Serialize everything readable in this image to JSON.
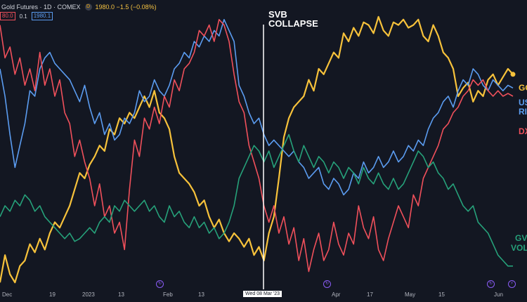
{
  "header": {
    "title": "Gold Futures · 1D · COMEX",
    "badge": "D",
    "gold_value": "1980.0  −1.5 (−0.08%)",
    "box_red": "80.0",
    "mid_value": "0.1",
    "box_blue": "1980.1"
  },
  "annotation": {
    "line1": "SVB",
    "line2": "COLLAPSE"
  },
  "cursor_label": "Wed 08 Mar '23",
  "series_labels": {
    "gold": "GO",
    "us_real_1": "US",
    "us_real_2": "RI",
    "dxy": "DX",
    "gvz_1": "GV",
    "gvz_2": "VOL"
  },
  "colors": {
    "background": "#131722",
    "gold": "#f7c23b",
    "blue": "#5b9cf0",
    "red": "#f0505b",
    "green": "#26a17a",
    "event": "#8a5cf6"
  },
  "chart_data": {
    "type": "line",
    "x_tick_labels": [
      "Dec",
      "19",
      "2023",
      "13",
      "Feb",
      "13",
      "Apr",
      "17",
      "May",
      "15",
      "Jun"
    ],
    "annotation_date": "Wed 08 Mar '23",
    "series": [
      {
        "name": "GO",
        "color": "#f7c23b",
        "values": [
          0.02,
          0.12,
          0.05,
          0.02,
          0.08,
          0.1,
          0.16,
          0.13,
          0.18,
          0.14,
          0.2,
          0.24,
          0.22,
          0.26,
          0.3,
          0.36,
          0.42,
          0.4,
          0.45,
          0.48,
          0.52,
          0.5,
          0.58,
          0.56,
          0.62,
          0.6,
          0.64,
          0.62,
          0.66,
          0.7,
          0.66,
          0.72,
          0.64,
          0.62,
          0.58,
          0.48,
          0.42,
          0.4,
          0.38,
          0.35,
          0.3,
          0.32,
          0.26,
          0.22,
          0.25,
          0.2,
          0.17,
          0.2,
          0.18,
          0.15,
          0.18,
          0.12,
          0.15,
          0.1,
          0.2,
          0.26,
          0.4,
          0.55,
          0.62,
          0.66,
          0.68,
          0.7,
          0.76,
          0.72,
          0.8,
          0.78,
          0.82,
          0.86,
          0.84,
          0.93,
          0.9,
          0.95,
          0.92,
          0.97,
          0.96,
          0.93,
          0.99,
          0.94,
          0.92,
          0.97,
          0.96,
          0.98,
          0.95,
          0.96,
          0.98,
          0.92,
          0.9,
          0.96,
          0.92,
          0.86,
          0.84,
          0.8,
          0.7,
          0.73,
          0.75,
          0.68,
          0.72,
          0.7,
          0.76,
          0.78,
          0.74,
          0.77,
          0.8,
          0.78
        ]
      },
      {
        "name": "US RI",
        "color": "#5b9cf0",
        "values": [
          0.8,
          0.7,
          0.56,
          0.44,
          0.52,
          0.6,
          0.72,
          0.7,
          0.8,
          0.84,
          0.86,
          0.82,
          0.8,
          0.78,
          0.76,
          0.72,
          0.68,
          0.74,
          0.66,
          0.6,
          0.64,
          0.56,
          0.6,
          0.54,
          0.56,
          0.62,
          0.6,
          0.64,
          0.72,
          0.68,
          0.7,
          0.76,
          0.72,
          0.7,
          0.74,
          0.8,
          0.82,
          0.86,
          0.84,
          0.9,
          0.88,
          0.92,
          0.9,
          0.94,
          0.92,
          0.98,
          0.94,
          0.9,
          0.74,
          0.7,
          0.64,
          0.6,
          0.62,
          0.56,
          0.52,
          0.54,
          0.52,
          0.5,
          0.48,
          0.5,
          0.46,
          0.44,
          0.4,
          0.42,
          0.44,
          0.38,
          0.36,
          0.4,
          0.38,
          0.34,
          0.36,
          0.42,
          0.4,
          0.46,
          0.42,
          0.44,
          0.48,
          0.44,
          0.46,
          0.5,
          0.46,
          0.48,
          0.52,
          0.5,
          0.54,
          0.52,
          0.58,
          0.62,
          0.64,
          0.68,
          0.7,
          0.66,
          0.72,
          0.76,
          0.74,
          0.8,
          0.78,
          0.74,
          0.72,
          0.76,
          0.74,
          0.72,
          0.74,
          0.73
        ]
      },
      {
        "name": "DX",
        "color": "#f0505b",
        "values": [
          0.96,
          0.84,
          0.88,
          0.78,
          0.84,
          0.74,
          0.8,
          0.72,
          0.86,
          0.74,
          0.8,
          0.7,
          0.76,
          0.64,
          0.6,
          0.48,
          0.54,
          0.46,
          0.4,
          0.3,
          0.38,
          0.26,
          0.3,
          0.2,
          0.24,
          0.14,
          0.36,
          0.54,
          0.48,
          0.62,
          0.58,
          0.66,
          0.6,
          0.7,
          0.66,
          0.76,
          0.72,
          0.8,
          0.82,
          0.86,
          0.94,
          0.92,
          0.96,
          0.9,
          0.98,
          0.96,
          0.9,
          0.78,
          0.68,
          0.64,
          0.52,
          0.46,
          0.4,
          0.3,
          0.24,
          0.3,
          0.2,
          0.26,
          0.16,
          0.22,
          0.1,
          0.18,
          0.06,
          0.14,
          0.2,
          0.1,
          0.14,
          0.24,
          0.16,
          0.12,
          0.2,
          0.16,
          0.3,
          0.22,
          0.18,
          0.26,
          0.14,
          0.1,
          0.18,
          0.24,
          0.3,
          0.26,
          0.22,
          0.34,
          0.3,
          0.4,
          0.44,
          0.48,
          0.52,
          0.58,
          0.6,
          0.64,
          0.66,
          0.7,
          0.72,
          0.76,
          0.74,
          0.76,
          0.72,
          0.7,
          0.72,
          0.7,
          0.71,
          0.7
        ]
      },
      {
        "name": "GV VOL",
        "color": "#26a17a",
        "values": [
          0.26,
          0.3,
          0.28,
          0.32,
          0.3,
          0.34,
          0.32,
          0.28,
          0.3,
          0.26,
          0.24,
          0.22,
          0.2,
          0.18,
          0.2,
          0.17,
          0.18,
          0.2,
          0.22,
          0.2,
          0.24,
          0.26,
          0.24,
          0.3,
          0.28,
          0.32,
          0.3,
          0.28,
          0.3,
          0.32,
          0.28,
          0.3,
          0.26,
          0.24,
          0.3,
          0.26,
          0.28,
          0.24,
          0.22,
          0.26,
          0.22,
          0.24,
          0.2,
          0.22,
          0.18,
          0.2,
          0.24,
          0.3,
          0.4,
          0.44,
          0.48,
          0.52,
          0.5,
          0.46,
          0.5,
          0.44,
          0.48,
          0.52,
          0.56,
          0.5,
          0.46,
          0.52,
          0.48,
          0.44,
          0.48,
          0.46,
          0.42,
          0.46,
          0.44,
          0.4,
          0.44,
          0.42,
          0.38,
          0.44,
          0.4,
          0.38,
          0.42,
          0.38,
          0.36,
          0.4,
          0.36,
          0.38,
          0.42,
          0.46,
          0.5,
          0.48,
          0.44,
          0.46,
          0.42,
          0.4,
          0.36,
          0.38,
          0.34,
          0.3,
          0.28,
          0.3,
          0.24,
          0.22,
          0.2,
          0.16,
          0.12,
          0.1,
          0.08,
          0.08
        ]
      }
    ],
    "legend": "right-side labels",
    "grid": false
  }
}
